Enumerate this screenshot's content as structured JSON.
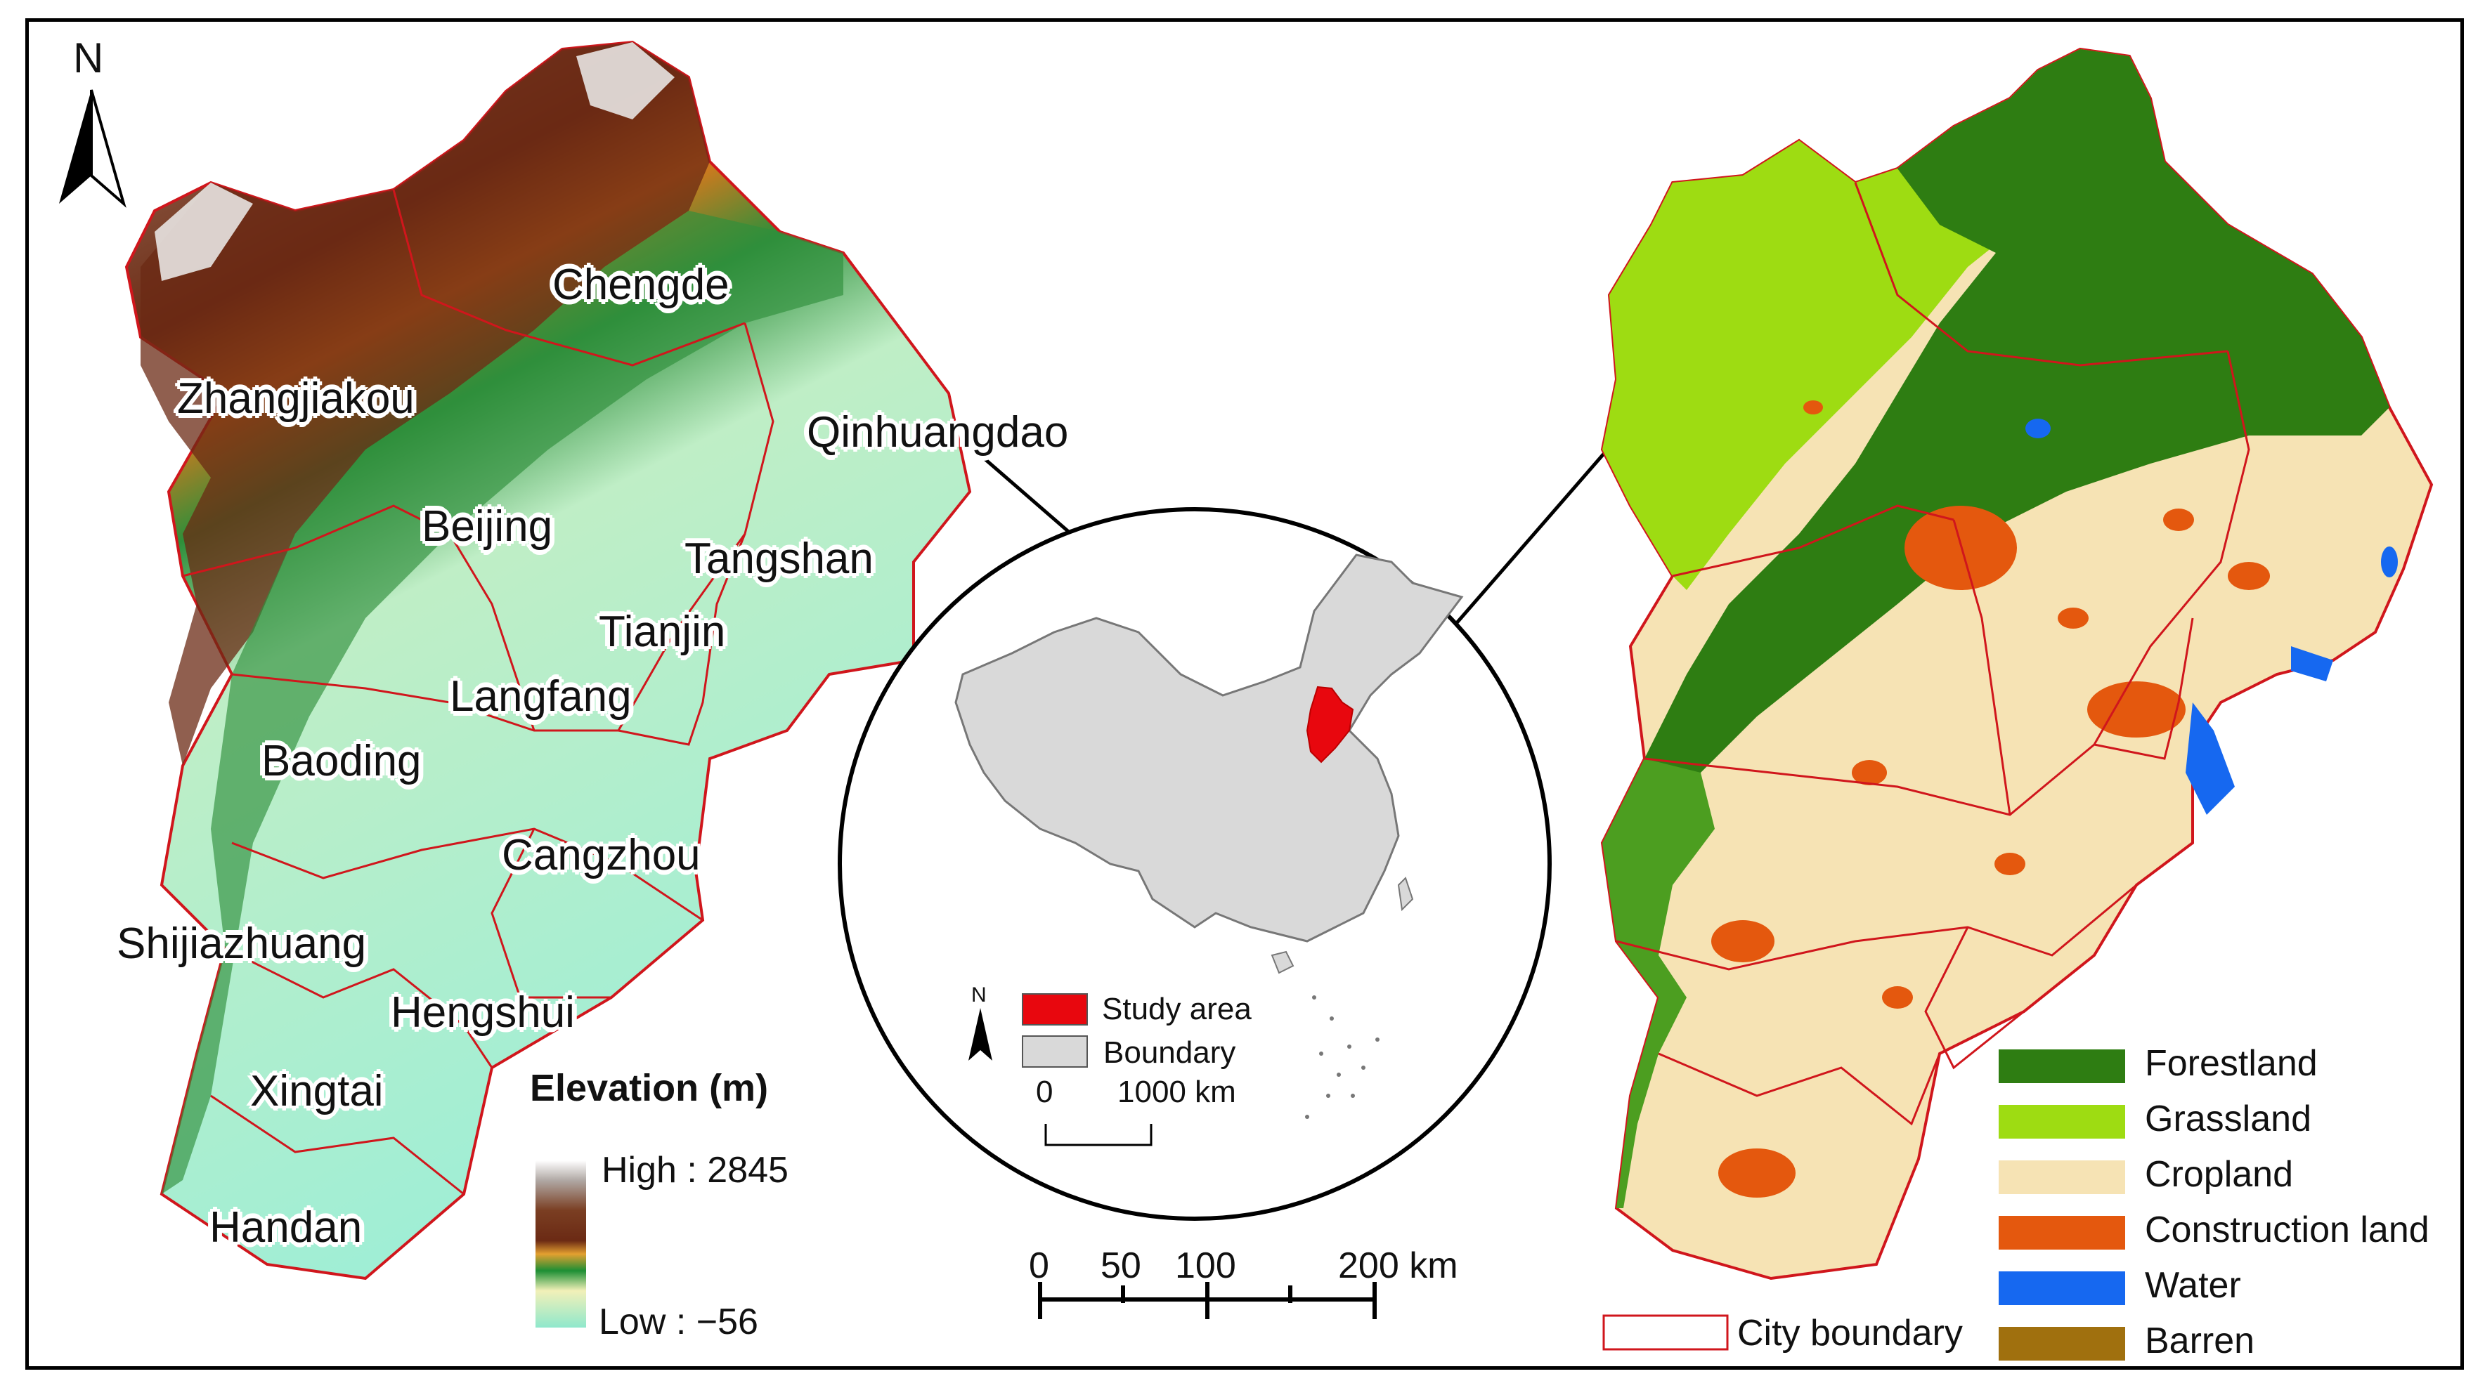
{
  "north_label": "N",
  "elevation_legend": {
    "title": "Elevation (m)",
    "high_label": "High : 2845",
    "low_label": "Low : −56",
    "colors": [
      "#ffffff",
      "#8c3f1f",
      "#6b2a14",
      "#e8a23a",
      "#1a8a2e",
      "#9be6c8"
    ]
  },
  "cities": [
    {
      "name": "Chengde"
    },
    {
      "name": "Zhangjiakou"
    },
    {
      "name": "Qinhuangdao"
    },
    {
      "name": "Beijing"
    },
    {
      "name": "Tangshan"
    },
    {
      "name": "Tianjin"
    },
    {
      "name": "Langfang"
    },
    {
      "name": "Baoding"
    },
    {
      "name": "Cangzhou"
    },
    {
      "name": "Shijiazhuang"
    },
    {
      "name": "Hengshui"
    },
    {
      "name": "Xingtai"
    },
    {
      "name": "Handan"
    }
  ],
  "inset": {
    "north_label": "N",
    "legend": [
      {
        "label": "Study area",
        "color": "#e8070e"
      },
      {
        "label": "Boundary",
        "color": "#d9d9d9"
      }
    ],
    "scale_labels": [
      "0",
      "1000 km"
    ]
  },
  "main_scale": {
    "labels": [
      "0",
      "50",
      "100",
      "200 km"
    ]
  },
  "landuse_legend": [
    {
      "label": "Forestland",
      "color": "#2e7d12"
    },
    {
      "label": "Grassland",
      "color": "#9edc12"
    },
    {
      "label": "Cropland",
      "color": "#f6e3b4"
    },
    {
      "label": "Construction land",
      "color": "#e4580e"
    },
    {
      "label": "Water",
      "color": "#1668f0"
    },
    {
      "label": "Barren",
      "color": "#a0700e"
    }
  ],
  "city_boundary_legend": {
    "label": "City boundary",
    "color": "#d0161c"
  }
}
